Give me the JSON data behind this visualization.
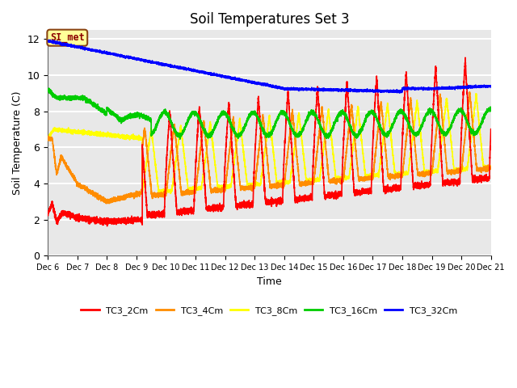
{
  "title": "Soil Temperatures Set 3",
  "xlabel": "Time",
  "ylabel": "Soil Temperature (C)",
  "ylim": [
    0,
    12.5
  ],
  "background_color": "#e8e8e8",
  "grid_color": "white",
  "annotation_text": "SI_met",
  "annotation_color": "#8B0000",
  "annotation_bg": "#ffff99",
  "annotation_border": "#8B4513",
  "x_tick_labels": [
    "Dec 6",
    "Dec 7",
    "Dec 8",
    "Dec 9",
    "Dec 10",
    "Dec 11",
    "Dec 12",
    "Dec 13",
    "Dec 14",
    "Dec 15",
    "Dec 16",
    "Dec 17",
    "Dec 18",
    "Dec 19",
    "Dec 20",
    "Dec 21"
  ],
  "series": {
    "TC3_2Cm": {
      "color": "#ff0000",
      "lw": 1.2
    },
    "TC3_4Cm": {
      "color": "#ff8c00",
      "lw": 1.2
    },
    "TC3_8Cm": {
      "color": "#ffff00",
      "lw": 1.2
    },
    "TC3_16Cm": {
      "color": "#00cc00",
      "lw": 1.2
    },
    "TC3_32Cm": {
      "color": "#0000ff",
      "lw": 1.2
    }
  }
}
